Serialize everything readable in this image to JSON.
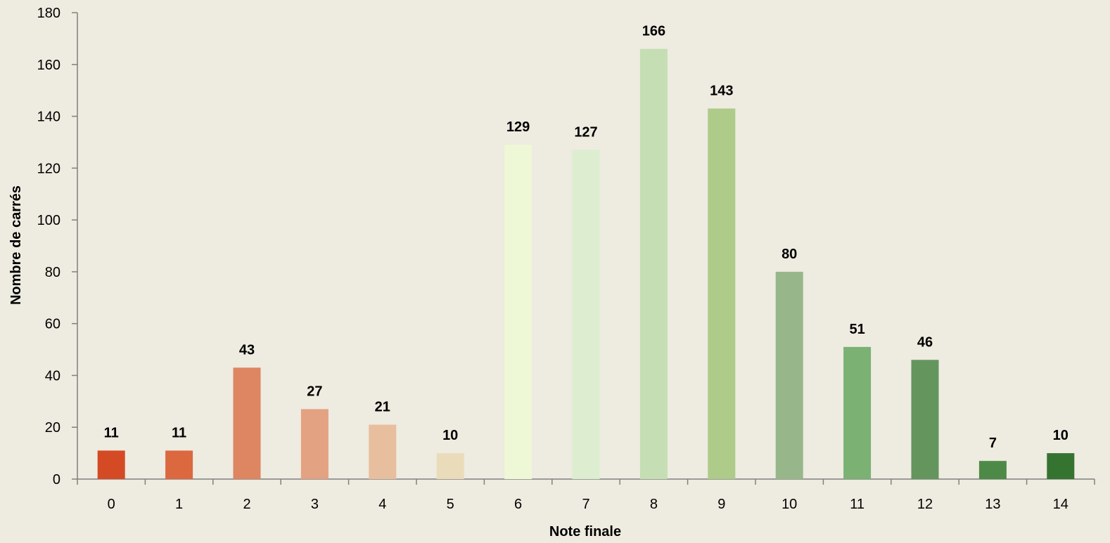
{
  "chart_data": {
    "type": "bar",
    "xlabel": "Note finale",
    "ylabel": "Nombre de carrés",
    "ylim": [
      0,
      180
    ],
    "y_ticks": [
      "0",
      "20",
      "40",
      "60",
      "80",
      "100",
      "120",
      "140",
      "160",
      "180"
    ],
    "categories": [
      "0",
      "1",
      "2",
      "3",
      "4",
      "5",
      "6",
      "7",
      "8",
      "9",
      "10",
      "11",
      "12",
      "13",
      "14"
    ],
    "values": [
      11,
      11,
      43,
      27,
      21,
      10,
      129,
      127,
      166,
      143,
      80,
      51,
      46,
      7,
      10
    ],
    "colors": [
      "#D44A24",
      "#DC6840",
      "#DE8561",
      "#E3A282",
      "#E8BF9E",
      "#EADCBA",
      "#EFF8D6",
      "#DCEECF",
      "#C5DEB4",
      "#AECB8A",
      "#97B78A",
      "#7BB173",
      "#64955D",
      "#4D8A47",
      "#357331"
    ],
    "grid": false,
    "legend": "none",
    "background": "#EEEBE0"
  }
}
